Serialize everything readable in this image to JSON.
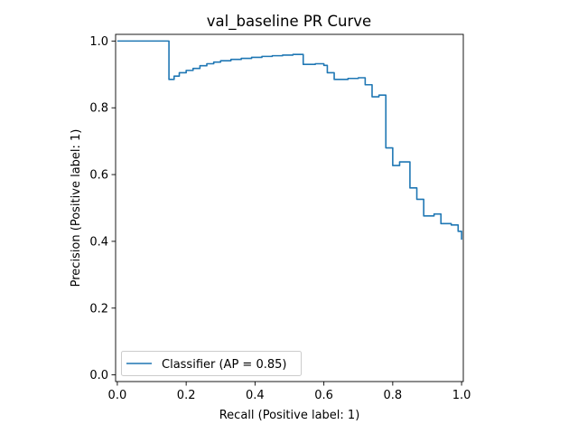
{
  "chart_data": {
    "type": "line",
    "drawstyle": "steps-post",
    "title": "val_baseline PR Curve",
    "xlabel": "Recall (Positive label: 1)",
    "ylabel": "Precision (Positive label: 1)",
    "xlim": [
      -0.005,
      1.005
    ],
    "ylim": [
      -0.02,
      1.02
    ],
    "xticks": [
      0.0,
      0.2,
      0.4,
      0.6,
      0.8,
      1.0
    ],
    "xtick_labels": [
      "0.0",
      "0.2",
      "0.4",
      "0.6",
      "0.8",
      "1.0"
    ],
    "yticks": [
      0.0,
      0.2,
      0.4,
      0.6,
      0.8,
      1.0
    ],
    "ytick_labels": [
      "0.0",
      "0.2",
      "0.4",
      "0.6",
      "0.8",
      "1.0"
    ],
    "grid": false,
    "legend": {
      "position": "lower-left",
      "entries": [
        "Classifier (AP = 0.85)"
      ]
    },
    "colors": {
      "series": "#1f77b4"
    },
    "series": [
      {
        "name": "Classifier (AP = 0.85)",
        "x": [
          0.0,
          0.15,
          0.15,
          0.165,
          0.18,
          0.2,
          0.22,
          0.24,
          0.26,
          0.28,
          0.3,
          0.33,
          0.36,
          0.39,
          0.42,
          0.45,
          0.48,
          0.51,
          0.54,
          0.54,
          0.575,
          0.6,
          0.61,
          0.63,
          0.67,
          0.7,
          0.72,
          0.74,
          0.76,
          0.78,
          0.8,
          0.82,
          0.85,
          0.87,
          0.89,
          0.92,
          0.94,
          0.97,
          0.99,
          1.0
        ],
        "y": [
          1.0,
          1.0,
          0.885,
          0.895,
          0.905,
          0.912,
          0.918,
          0.926,
          0.932,
          0.937,
          0.941,
          0.945,
          0.948,
          0.951,
          0.954,
          0.956,
          0.958,
          0.96,
          0.96,
          0.93,
          0.932,
          0.927,
          0.905,
          0.885,
          0.888,
          0.89,
          0.869,
          0.833,
          0.838,
          0.68,
          0.627,
          0.638,
          0.56,
          0.526,
          0.476,
          0.482,
          0.453,
          0.449,
          0.43,
          0.405
        ]
      }
    ]
  }
}
